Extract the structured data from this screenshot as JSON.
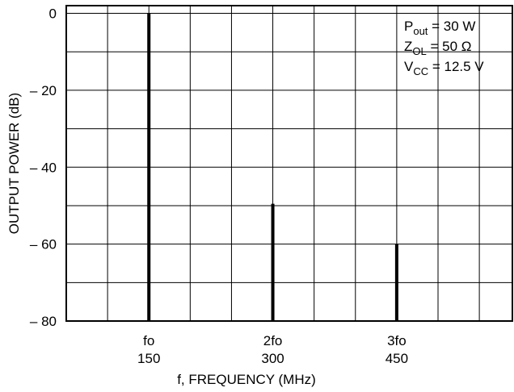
{
  "chart_data": {
    "type": "bar",
    "xlabel": "f, FREQUENCY (MHz)",
    "ylabel": "OUTPUT POWER (dB)",
    "xlim": [
      50,
      590
    ],
    "ylim": [
      -80,
      2
    ],
    "yticks": [
      {
        "value": 0,
        "label": "0"
      },
      {
        "value": -20,
        "label": "– 20"
      },
      {
        "value": -40,
        "label": "– 40"
      },
      {
        "value": -60,
        "label": "– 60"
      },
      {
        "value": -80,
        "label": "– 80"
      }
    ],
    "xticks": [
      {
        "value": 150,
        "harmonic": "fo",
        "label": "150"
      },
      {
        "value": 300,
        "harmonic": "2fo",
        "label": "300"
      },
      {
        "value": 450,
        "harmonic": "3fo",
        "label": "450"
      }
    ],
    "points": [
      {
        "x": 150,
        "y": 0
      },
      {
        "x": 300,
        "y": -49.5
      },
      {
        "x": 450,
        "y": -60
      }
    ],
    "grid": true,
    "annotations": [
      {
        "main": "P",
        "sub": "out",
        "rest": " = 30 W"
      },
      {
        "main": "Z",
        "sub": "OL",
        "rest": " = 50 Ω"
      },
      {
        "main": "V",
        "sub": "CC",
        "rest": " = 12.5 V"
      }
    ],
    "colors": {
      "line": "#000000",
      "background": "#ffffff"
    }
  }
}
